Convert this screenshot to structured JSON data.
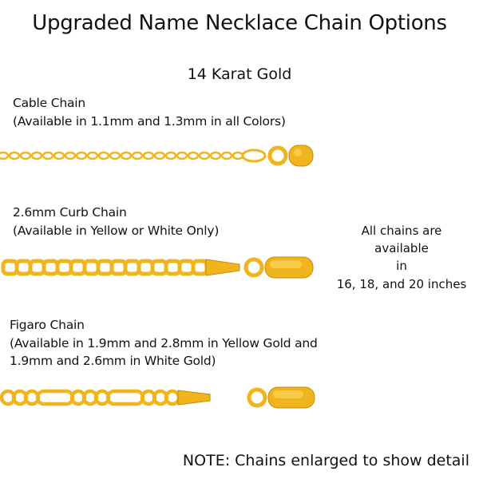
{
  "title": "Upgraded Name Necklace Chain Options",
  "subtitle": "14 Karat Gold",
  "chains": [
    {
      "name": "Cable Chain",
      "availability": "(Available in 1.1mm and 1.3mm in all Colors)",
      "style": "cable"
    },
    {
      "name": "2.6mm Curb Chain",
      "availability": "(Available in Yellow or White Only)",
      "style": "curb"
    },
    {
      "name": "Figaro Chain",
      "availability": "(Available in 1.9mm and 2.8mm in Yellow Gold and",
      "availability_2": "1.9mm and 2.6mm in White Gold)",
      "style": "figaro"
    }
  ],
  "side_note": [
    "All chains are",
    "available",
    "in",
    "16, 18, and 20 inches"
  ],
  "note": "NOTE: Chains enlarged to show detail",
  "colors": {
    "gold": "#f0b41c",
    "gold_dark": "#c98a07",
    "gold_light": "#fbd864"
  }
}
